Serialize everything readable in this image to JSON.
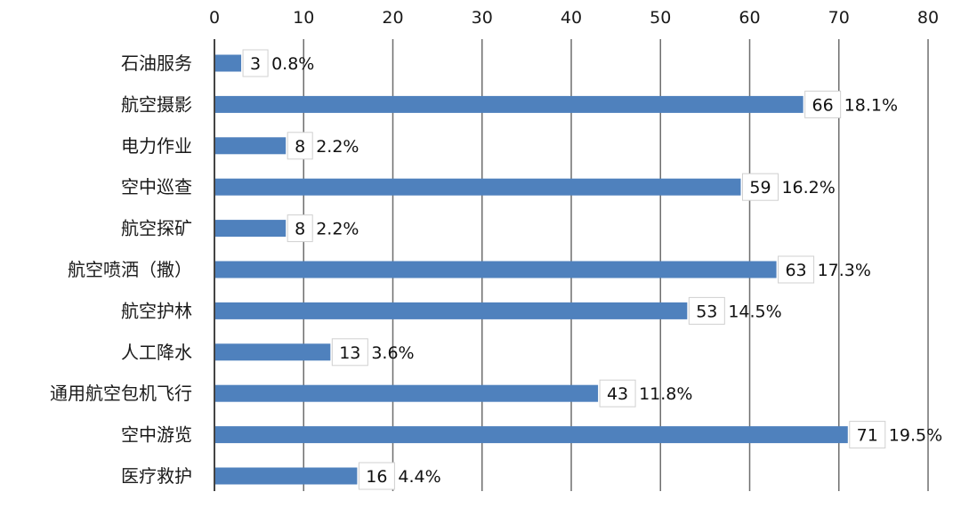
{
  "chart_data": {
    "type": "bar",
    "orientation": "horizontal",
    "title": "",
    "xlabel": "",
    "ylabel": "",
    "xlim": [
      0,
      80
    ],
    "ticks": [
      0,
      10,
      20,
      30,
      40,
      50,
      60,
      70,
      80
    ],
    "x_axis_position": "top",
    "grid": true,
    "legend": "none",
    "bar_color": "#4f81bd",
    "categories": [
      "石油服务",
      "航空摄影",
      "电力作业",
      "空中巡查",
      "航空探矿",
      "航空喷洒（撒）",
      "航空护林",
      "人工降水",
      "通用航空包机飞行",
      "空中游览",
      "医疗救护"
    ],
    "values": [
      3,
      66,
      8,
      59,
      8,
      63,
      53,
      13,
      43,
      71,
      16
    ],
    "percent_labels": [
      "0.8%",
      "18.1%",
      "2.2%",
      "16.2%",
      "2.2%",
      "17.3%",
      "14.5%",
      "3.6%",
      "11.8%",
      "19.5%",
      "4.4%"
    ]
  }
}
